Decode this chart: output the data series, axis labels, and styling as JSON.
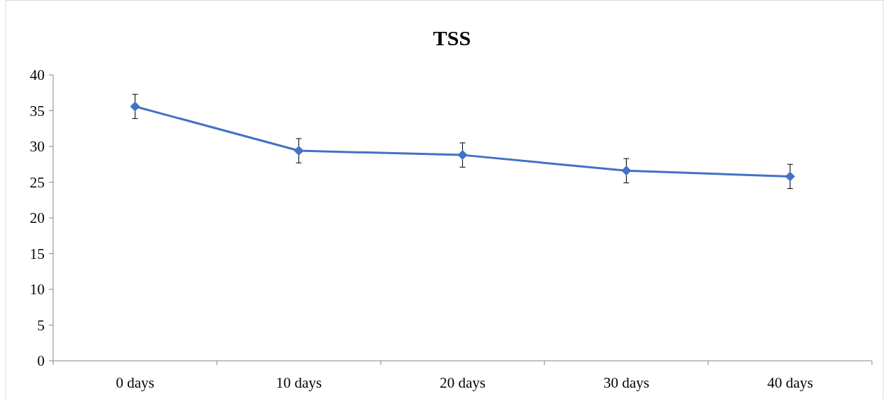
{
  "chart_data": {
    "type": "line",
    "title": "TSS",
    "categories": [
      "0 days",
      "10 days",
      "20 days",
      "30 days",
      "40 days"
    ],
    "series": [
      {
        "color": "#4472c4",
        "values": [
          35.6,
          29.4,
          28.8,
          26.6,
          25.8
        ],
        "errors": [
          1.7,
          1.7,
          1.7,
          1.7,
          1.7
        ]
      }
    ],
    "ylim": [
      0,
      40
    ],
    "yticks": [
      0,
      5,
      10,
      15,
      20,
      25,
      30,
      35,
      40
    ],
    "grid": false,
    "marker": "diamond",
    "line_style": "solid"
  }
}
